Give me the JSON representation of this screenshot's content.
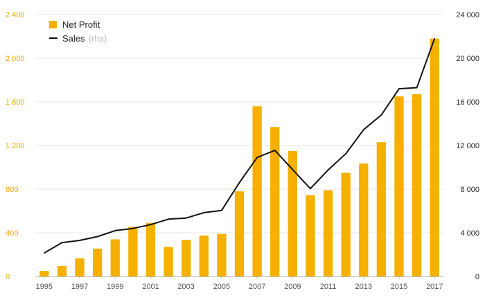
{
  "chart_data": {
    "type": "bar",
    "x": [
      "1995",
      "1996",
      "1997",
      "1998",
      "1999",
      "2000",
      "2001",
      "2002",
      "2003",
      "2004",
      "2005",
      "2006",
      "2007",
      "2008",
      "2009",
      "2010",
      "2011",
      "2012",
      "2013",
      "2014",
      "2015",
      "2016",
      "2017"
    ],
    "xticks": [
      "1995",
      "1997",
      "1999",
      "2001",
      "2003",
      "2005",
      "2007",
      "2009",
      "2011",
      "2013",
      "2015",
      "2017"
    ],
    "series": [
      {
        "name": "Net Profit",
        "type": "bar",
        "axis": "left",
        "color": "#f5b000",
        "values": [
          50,
          95,
          165,
          255,
          340,
          455,
          490,
          270,
          335,
          375,
          390,
          780,
          1560,
          1370,
          1150,
          745,
          790,
          950,
          1035,
          1230,
          1650,
          1670,
          2180
        ]
      },
      {
        "name": "Sales",
        "name_note": "(rhs)",
        "type": "line",
        "axis": "right",
        "color": "#111111",
        "values": [
          2150,
          3100,
          3300,
          3650,
          4200,
          4400,
          4750,
          5250,
          5350,
          5850,
          6050,
          8600,
          10900,
          11550,
          9800,
          8050,
          9750,
          11250,
          13450,
          14800,
          17200,
          17300,
          21800
        ]
      }
    ],
    "left_axis": {
      "ylim": [
        0,
        2400
      ],
      "ticks": [
        "0",
        "400",
        "800",
        "1 200",
        "1 600",
        "2 000",
        "2 400"
      ],
      "color": "#f0a500"
    },
    "right_axis": {
      "ylim": [
        0,
        24000
      ],
      "ticks": [
        "0",
        "4 000",
        "8 000",
        "12 000",
        "16 000",
        "20 000",
        "24 000"
      ],
      "color": "#222222"
    },
    "grid": true,
    "legend": {
      "position": "top-left",
      "items": [
        {
          "label": "Net Profit",
          "note": "",
          "marker": "square"
        },
        {
          "label": "Sales",
          "note": "(rhs)",
          "marker": "line"
        }
      ]
    }
  }
}
